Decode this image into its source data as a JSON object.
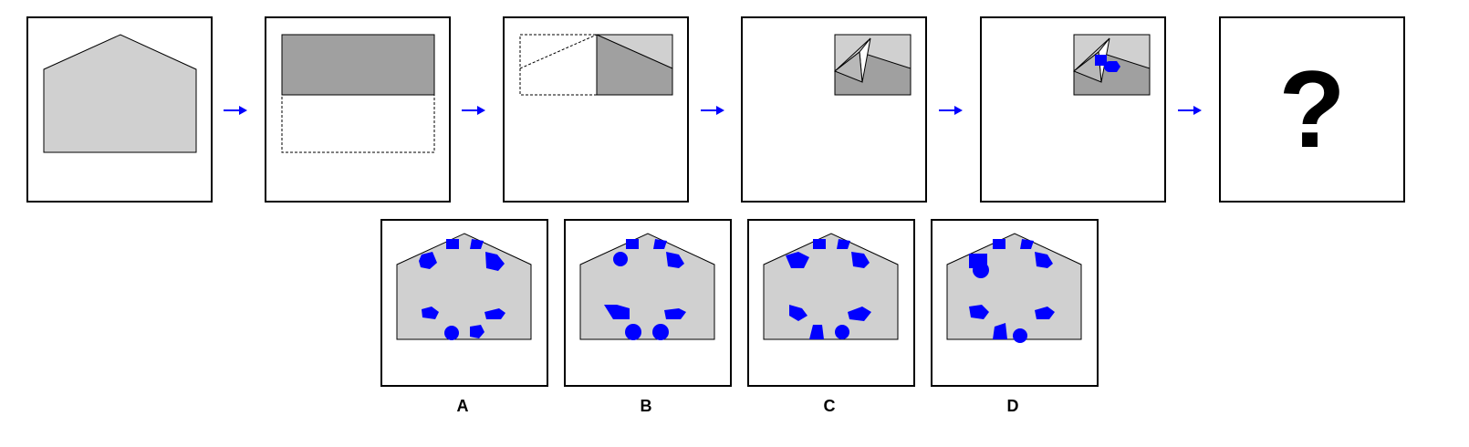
{
  "question_mark": "?",
  "options": [
    {
      "label": "A"
    },
    {
      "label": "B"
    },
    {
      "label": "C"
    },
    {
      "label": "D"
    }
  ],
  "colors": {
    "paper_light": "#d0d0d0",
    "paper_dark": "#a0a0a0",
    "hole": "#0000ff",
    "arrow": "#0000ff",
    "outline": "#000000"
  },
  "icons": {
    "arrow": "right-arrow-icon",
    "hole": "punched-hole-icon"
  }
}
